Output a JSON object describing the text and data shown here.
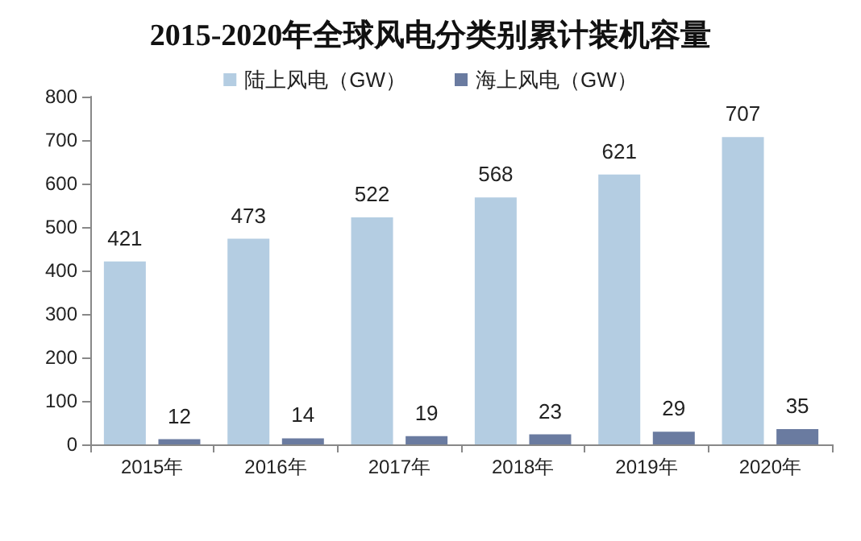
{
  "chart_data": {
    "type": "bar",
    "title": "2015-2020年全球风电分类别累计装机容量",
    "categories": [
      "2015年",
      "2016年",
      "2017年",
      "2018年",
      "2019年",
      "2020年"
    ],
    "series": [
      {
        "name": "陆上风电（GW）",
        "color": "#b4cde2",
        "values": [
          421,
          473,
          522,
          568,
          621,
          707
        ]
      },
      {
        "name": "海上风电（GW）",
        "color": "#6a7ba0",
        "values": [
          12,
          14,
          19,
          23,
          29,
          35
        ]
      }
    ],
    "ylim": [
      0,
      800
    ],
    "yticks": [
      0,
      100,
      200,
      300,
      400,
      500,
      600,
      700,
      800
    ],
    "grid": false,
    "legend": "top",
    "data_labels": true
  }
}
